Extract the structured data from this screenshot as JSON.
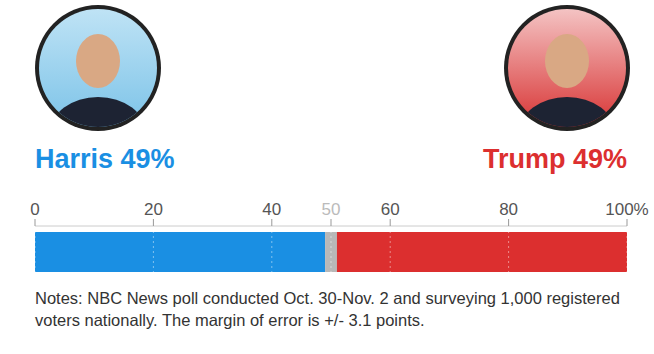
{
  "chart_data": {
    "type": "bar",
    "orientation": "horizontal",
    "stacked": true,
    "categories": [
      null
    ],
    "series": [
      {
        "name": "Harris",
        "color": "#1a8fe3",
        "values": [
          49
        ],
        "value_labels": [
          "49%"
        ]
      },
      {
        "color": "#b8b8b8",
        "values": [
          2
        ]
      },
      {
        "name": "Trump",
        "color": "#dc2f2f",
        "values": [
          49
        ],
        "value_labels": [
          "49%"
        ]
      }
    ],
    "xlim": [
      0,
      100
    ],
    "xticks": [
      0,
      20,
      40,
      50,
      60,
      80,
      {
        "value": 100,
        "label": "100%"
      }
    ],
    "grid": true,
    "notes": "Notes: NBC News poll conducted Oct. 30-Nov. 2 and surveying 1,000 registered voters nationally. The margin of error is +/- 3.1 points."
  }
}
